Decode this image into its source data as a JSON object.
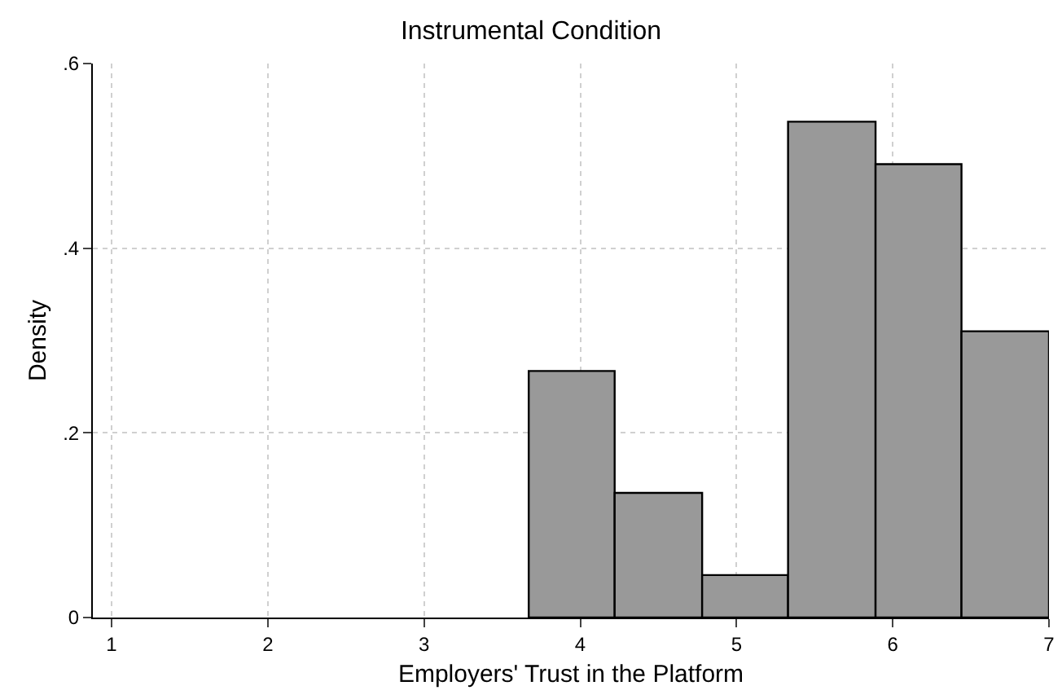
{
  "chart_data": {
    "type": "histogram",
    "title": "Instrumental Condition",
    "xlabel": "Employers' Trust in the Platform",
    "ylabel": "Density",
    "bins": [
      3.67,
      4.22,
      4.78,
      5.33,
      5.89,
      6.44,
      7
    ],
    "values": [
      0.267,
      0.135,
      0.046,
      0.537,
      0.491,
      0.31
    ],
    "color": "#999999",
    "xlim": [
      0.88,
      7
    ],
    "xticks": [
      1,
      2,
      3,
      4,
      5,
      6,
      7
    ],
    "ylim": [
      0,
      0.6
    ],
    "yticks": [
      0,
      {
        "value": 0.2,
        "label": ".2"
      },
      {
        "value": 0.4,
        "label": ".4"
      },
      {
        "value": 0.6,
        "label": ".6"
      }
    ],
    "grid": true
  }
}
